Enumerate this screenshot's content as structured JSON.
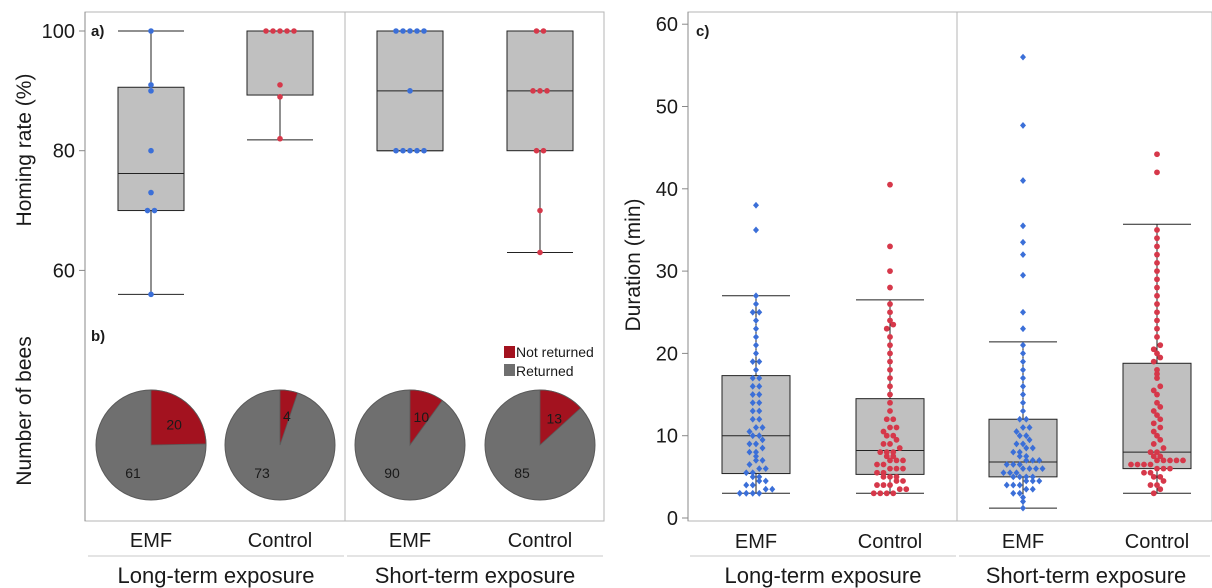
{
  "colors": {
    "emf": "#3b6fd8",
    "control": "#d6384a",
    "box_fill": "#c0c0c0",
    "pie_returned": "#6f6f6f",
    "pie_not_returned": "#a3121f",
    "frame": "#b5b5b5",
    "line": "#222222"
  },
  "groups": {
    "long_term": "Long-term exposure",
    "short_term": "Short-term exposure"
  },
  "chart_data": [
    {
      "type": "box",
      "panel_label": "a)",
      "ylabel": "Homing rate (%)",
      "yticks": [
        60,
        80,
        100
      ],
      "ylim": [
        48,
        103
      ],
      "categories": [
        "EMF",
        "Control",
        "EMF",
        "Control"
      ],
      "boxes": [
        {
          "group": "long_term",
          "treatment": "EMF",
          "min": 56,
          "q1": 70,
          "median": 76.2,
          "q3": 90.6,
          "max": 100,
          "points": [
            100,
            91,
            90,
            80,
            73,
            70,
            70,
            56
          ]
        },
        {
          "group": "long_term",
          "treatment": "Control",
          "min": 81.8,
          "q1": 89.3,
          "median": 100,
          "q3": 100,
          "max": 100,
          "points": [
            100,
            100,
            100,
            100,
            100,
            91,
            89,
            82
          ]
        },
        {
          "group": "short_term",
          "treatment": "EMF",
          "min": 80,
          "q1": 80,
          "median": 90,
          "q3": 100,
          "max": 100,
          "points": [
            100,
            100,
            100,
            100,
            100,
            90,
            80,
            80,
            80,
            80,
            80
          ]
        },
        {
          "group": "short_term",
          "treatment": "Control",
          "min": 63,
          "q1": 80,
          "median": 90,
          "q3": 100,
          "max": 100,
          "points": [
            100,
            100,
            90,
            90,
            90,
            80,
            80,
            70,
            63
          ]
        }
      ]
    },
    {
      "type": "pie",
      "panel_label": "b)",
      "ylabel": "Number of bees",
      "legend": [
        "Not returned",
        "Returned"
      ],
      "pies": [
        {
          "group": "long_term",
          "treatment": "EMF",
          "not_returned": 20,
          "returned": 61
        },
        {
          "group": "long_term",
          "treatment": "Control",
          "not_returned": 4,
          "returned": 73
        },
        {
          "group": "short_term",
          "treatment": "EMF",
          "not_returned": 10,
          "returned": 90
        },
        {
          "group": "short_term",
          "treatment": "Control",
          "not_returned": 13,
          "returned": 85
        }
      ]
    },
    {
      "type": "box",
      "panel_label": "c)",
      "ylabel": "Duration (min)",
      "yticks": [
        0,
        10,
        20,
        30,
        40,
        50,
        60
      ],
      "ylim": [
        0,
        61
      ],
      "categories": [
        "EMF",
        "Control",
        "EMF",
        "Control"
      ],
      "boxes": [
        {
          "group": "long_term",
          "treatment": "EMF",
          "min": 3,
          "q1": 5.4,
          "median": 10,
          "q3": 17.3,
          "max": 27,
          "outliers": [
            35,
            38
          ],
          "points": [
            3,
            3,
            3,
            3,
            3.5,
            3.5,
            4,
            4,
            4.5,
            4.5,
            5,
            5,
            5.5,
            5.5,
            6,
            6,
            6.5,
            7,
            7,
            7.5,
            8,
            8,
            8.5,
            9,
            9,
            9.5,
            10,
            10,
            10.5,
            11,
            11,
            12,
            12,
            13,
            13,
            14,
            14,
            15,
            15,
            16,
            16,
            17,
            17,
            18,
            19,
            19,
            20,
            21,
            22,
            23,
            24,
            25,
            25,
            26,
            27,
            35,
            38
          ]
        },
        {
          "group": "long_term",
          "treatment": "Control",
          "min": 3,
          "q1": 5.3,
          "median": 8.2,
          "q3": 14.5,
          "max": 26.5,
          "outliers": [
            28,
            30,
            33,
            40.5
          ],
          "points": [
            3,
            3,
            3,
            3,
            3.5,
            3.5,
            4,
            4,
            4,
            4.5,
            4.5,
            5,
            5,
            5,
            5.5,
            5.5,
            6,
            6,
            6,
            6.5,
            6.5,
            7,
            7,
            7,
            7.5,
            7.5,
            8,
            8,
            8,
            8.5,
            9,
            9,
            9.5,
            10,
            10,
            10.5,
            11,
            11,
            12,
            12,
            13,
            14,
            15,
            16,
            17,
            18,
            19,
            20,
            21,
            22,
            23,
            23.5,
            24,
            25,
            26,
            28,
            30,
            33,
            40.5
          ]
        },
        {
          "group": "short_term",
          "treatment": "EMF",
          "min": 1.2,
          "q1": 5,
          "median": 6.8,
          "q3": 12,
          "max": 21.4,
          "outliers": [
            23,
            25,
            29.5,
            32,
            33.5,
            35.5,
            41,
            47.7,
            56
          ],
          "points": [
            1.2,
            2,
            2.5,
            3,
            3,
            3.5,
            3.5,
            4,
            4,
            4,
            4.5,
            4.5,
            4.5,
            5,
            5,
            5,
            5,
            5.5,
            5.5,
            5.5,
            6,
            6,
            6,
            6,
            6.5,
            6.5,
            6.5,
            7,
            7,
            7,
            7.5,
            7.5,
            8,
            8,
            8.5,
            8.5,
            9,
            9,
            9.5,
            10,
            10,
            10.5,
            11,
            11,
            12,
            12,
            13,
            14,
            15,
            16,
            17,
            18,
            19,
            20,
            21,
            23,
            25,
            29.5,
            32,
            33.5,
            35.5,
            41,
            47.7,
            56
          ]
        },
        {
          "group": "short_term",
          "treatment": "Control",
          "min": 3,
          "q1": 6,
          "median": 8,
          "q3": 18.8,
          "max": 35.7,
          "outliers": [
            42,
            44.2
          ],
          "points": [
            3,
            3.5,
            4,
            4,
            4.5,
            5,
            5,
            5.5,
            5.5,
            6,
            6,
            6,
            6.5,
            6.5,
            6.5,
            6.5,
            7,
            7,
            7,
            7,
            7,
            7.5,
            7.5,
            8,
            8,
            8.5,
            9,
            9.5,
            10,
            10.5,
            11,
            11.5,
            12,
            12.5,
            13,
            13.5,
            14,
            15,
            15.5,
            16,
            17,
            17.5,
            18,
            19,
            19.5,
            20,
            20.5,
            21,
            22,
            23,
            24,
            25,
            26,
            27,
            28,
            29,
            30,
            31,
            32,
            33,
            34,
            35,
            42,
            44.2
          ]
        }
      ]
    }
  ]
}
